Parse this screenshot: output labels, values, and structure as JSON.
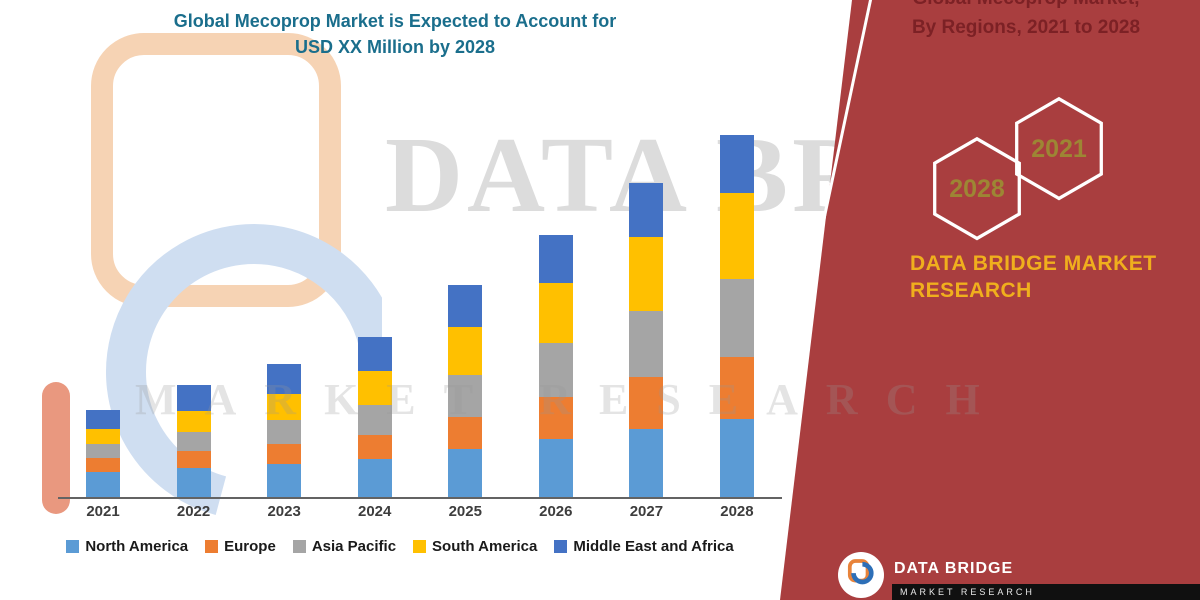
{
  "title": {
    "line1": "Global Mecoprop Market is Expected to Account for",
    "line2": "USD XX Million by 2028"
  },
  "watermark": {
    "brand_large": "DATA BRIDGE",
    "brand_spaced": "MARKET RESEARCH"
  },
  "right_panel": {
    "bg_color": "#A93E3F",
    "heading_line1": "Global Mecoprop Market,",
    "heading_line2": "By Regions, 2021 to 2028",
    "hexagons": [
      "2028",
      "2021"
    ],
    "brand_line1": "DATA BRIDGE MARKET",
    "brand_line2": "RESEARCH",
    "brand_color": "#F0AF1D"
  },
  "footer": {
    "brand": "DATA BRIDGE",
    "sub_brand": "MARKET RESEARCH"
  },
  "chart_data": {
    "type": "bar",
    "stacked": true,
    "title": "Global Mecoprop Market is Expected to Account for USD XX Million by 2028",
    "categories": [
      "2021",
      "2022",
      "2023",
      "2024",
      "2025",
      "2026",
      "2027",
      "2028"
    ],
    "series": [
      {
        "name": "North America",
        "color": "#5B9BD5",
        "values": [
          25,
          29,
          33,
          38,
          48,
          58,
          68,
          78
        ]
      },
      {
        "name": "Europe",
        "color": "#ED7D31",
        "values": [
          14,
          17,
          20,
          24,
          32,
          42,
          52,
          62
        ]
      },
      {
        "name": "Asia Pacific",
        "color": "#A5A5A5",
        "values": [
          14,
          19,
          24,
          30,
          42,
          54,
          66,
          78
        ]
      },
      {
        "name": "South America",
        "color": "#FFC000",
        "values": [
          15,
          21,
          26,
          34,
          48,
          60,
          74,
          86
        ]
      },
      {
        "name": "Middle East and Africa",
        "color": "#4472C4",
        "values": [
          19,
          26,
          30,
          34,
          42,
          48,
          54,
          58
        ]
      }
    ],
    "legend_position": "bottom",
    "y_axis_visible": false,
    "ylim": [
      0,
      380
    ]
  }
}
